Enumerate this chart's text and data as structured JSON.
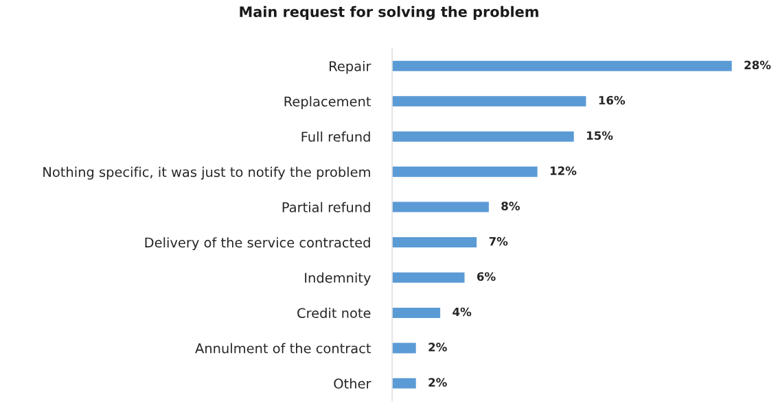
{
  "chart_data": {
    "type": "bar",
    "orientation": "horizontal",
    "title": "Main request for solving the problem",
    "categories": [
      "Repair",
      "Replacement",
      "Full refund",
      "Nothing specific, it was just to notify the problem",
      "Partial refund",
      "Delivery of the service contracted",
      "Indemnity",
      "Credit note",
      "Annulment of the contract",
      "Other"
    ],
    "values": [
      28,
      16,
      15,
      12,
      8,
      7,
      6,
      4,
      2,
      2
    ],
    "value_labels": [
      "28%",
      "16%",
      "15%",
      "12%",
      "8%",
      "7%",
      "6%",
      "4%",
      "2%",
      "2%"
    ],
    "color": "#5b9bd5",
    "grid": false,
    "legend": false
  }
}
